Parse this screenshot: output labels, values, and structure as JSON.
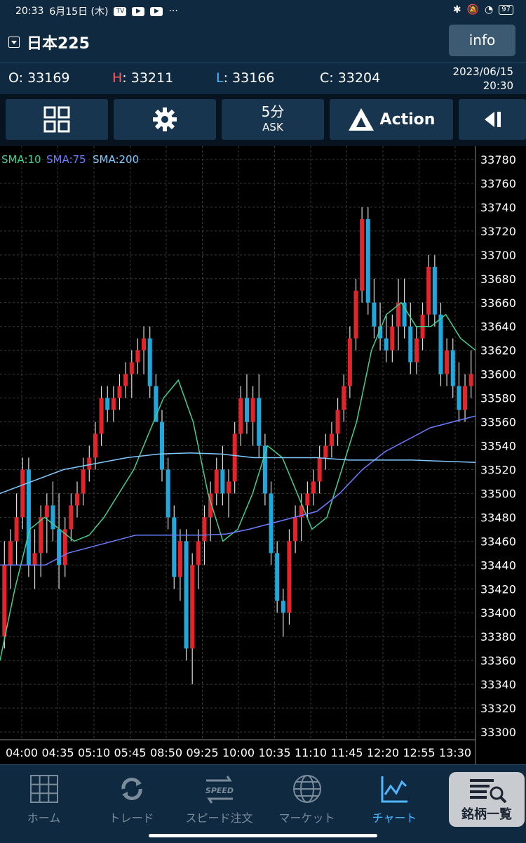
{
  "status_bar": {
    "time": "20:33",
    "date": "6月15日 (木)",
    "app_icons": [
      "tv-icon",
      "youtube-icon",
      "youtube-icon"
    ],
    "overflow": "···",
    "battery": "97"
  },
  "header": {
    "symbol": "日本225",
    "info_label": "info"
  },
  "ohlc": {
    "o_label": "O:",
    "o_value": "33169",
    "h_label": "H",
    "h_value": ": 33211",
    "l_label": "L",
    "l_value": ": 33166",
    "c_label": "C:",
    "c_value": "33204",
    "date": "2023/06/15",
    "time": "20:30"
  },
  "toolbar": {
    "timeframe": "5分",
    "price_type": "ASK",
    "action_label": "Action"
  },
  "legend": {
    "sma10": "SMA:10",
    "sma75": "SMA:75",
    "sma200": "SMA:200"
  },
  "bottom_nav": {
    "home": "ホーム",
    "trade": "トレード",
    "speed": "スピード注文",
    "speed_icon_text": "SPEED",
    "market": "マーケット",
    "chart": "チャート",
    "list": "銘柄一覧"
  },
  "colors": {
    "up": "#e3242b",
    "down": "#1fa8dd",
    "sma10": "#3fd08f",
    "sma75": "#6b7cff",
    "sma200": "#7fc9ff",
    "accent": "#4fb6ff"
  },
  "chart_data": {
    "type": "candlestick",
    "y_ticks": [
      33780,
      33760,
      33740,
      33720,
      33700,
      33680,
      33660,
      33640,
      33620,
      33600,
      33580,
      33560,
      33540,
      33520,
      33500,
      33480,
      33460,
      33440,
      33420,
      33400,
      33380,
      33360,
      33340,
      33320,
      33300
    ],
    "ylim": [
      33290,
      33790
    ],
    "x_ticks": [
      "04:00",
      "04:35",
      "05:10",
      "05:45",
      "08:50",
      "09:25",
      "10:00",
      "10:35",
      "11:10",
      "11:45",
      "12:20",
      "12:55",
      "13:30"
    ],
    "candles": [
      [
        33380,
        33460,
        33370,
        33440
      ],
      [
        33440,
        33470,
        33420,
        33460
      ],
      [
        33460,
        33500,
        33440,
        33480
      ],
      [
        33480,
        33530,
        33470,
        33520
      ],
      [
        33520,
        33530,
        33430,
        33440
      ],
      [
        33440,
        33470,
        33420,
        33450
      ],
      [
        33450,
        33490,
        33430,
        33480
      ],
      [
        33480,
        33500,
        33450,
        33490
      ],
      [
        33490,
        33510,
        33460,
        33470
      ],
      [
        33470,
        33500,
        33420,
        33440
      ],
      [
        33440,
        33480,
        33430,
        33470
      ],
      [
        33470,
        33500,
        33460,
        33490
      ],
      [
        33490,
        33510,
        33480,
        33500
      ],
      [
        33500,
        33530,
        33490,
        33520
      ],
      [
        33520,
        33540,
        33510,
        33530
      ],
      [
        33530,
        33560,
        33520,
        33550
      ],
      [
        33550,
        33590,
        33540,
        33580
      ],
      [
        33580,
        33590,
        33560,
        33570
      ],
      [
        33570,
        33590,
        33560,
        33580
      ],
      [
        33580,
        33600,
        33570,
        33590
      ],
      [
        33590,
        33610,
        33580,
        33600
      ],
      [
        33600,
        33620,
        33580,
        33610
      ],
      [
        33610,
        33630,
        33600,
        33620
      ],
      [
        33620,
        33640,
        33600,
        33630
      ],
      [
        33630,
        33640,
        33580,
        33590
      ],
      [
        33590,
        33600,
        33560,
        33560
      ],
      [
        33560,
        33570,
        33510,
        33520
      ],
      [
        33520,
        33530,
        33470,
        33480
      ],
      [
        33480,
        33490,
        33420,
        33430
      ],
      [
        33430,
        33470,
        33410,
        33460
      ],
      [
        33460,
        33470,
        33360,
        33370
      ],
      [
        33370,
        33450,
        33340,
        33440
      ],
      [
        33440,
        33470,
        33420,
        33460
      ],
      [
        33460,
        33490,
        33440,
        33480
      ],
      [
        33480,
        33510,
        33460,
        33500
      ],
      [
        33500,
        33530,
        33490,
        33520
      ],
      [
        33520,
        33540,
        33490,
        33500
      ],
      [
        33500,
        33520,
        33480,
        33510
      ],
      [
        33510,
        33560,
        33500,
        33550
      ],
      [
        33550,
        33590,
        33540,
        33580
      ],
      [
        33580,
        33600,
        33550,
        33560
      ],
      [
        33560,
        33590,
        33540,
        33580
      ],
      [
        33580,
        33600,
        33530,
        33540
      ],
      [
        33540,
        33550,
        33490,
        33500
      ],
      [
        33500,
        33510,
        33440,
        33450
      ],
      [
        33450,
        33460,
        33400,
        33410
      ],
      [
        33410,
        33420,
        33380,
        33400
      ],
      [
        33400,
        33470,
        33390,
        33460
      ],
      [
        33460,
        33490,
        33450,
        33480
      ],
      [
        33480,
        33500,
        33460,
        33490
      ],
      [
        33490,
        33510,
        33480,
        33500
      ],
      [
        33500,
        33520,
        33490,
        33510
      ],
      [
        33510,
        33540,
        33500,
        33530
      ],
      [
        33530,
        33550,
        33520,
        33540
      ],
      [
        33540,
        33560,
        33530,
        33550
      ],
      [
        33550,
        33580,
        33540,
        33570
      ],
      [
        33570,
        33600,
        33560,
        33590
      ],
      [
        33590,
        33640,
        33580,
        33630
      ],
      [
        33630,
        33680,
        33620,
        33670
      ],
      [
        33670,
        33740,
        33660,
        33730
      ],
      [
        33730,
        33740,
        33650,
        33660
      ],
      [
        33660,
        33680,
        33630,
        33640
      ],
      [
        33640,
        33660,
        33620,
        33630
      ],
      [
        33630,
        33650,
        33610,
        33620
      ],
      [
        33620,
        33650,
        33610,
        33640
      ],
      [
        33640,
        33680,
        33620,
        33660
      ],
      [
        33660,
        33680,
        33630,
        33640
      ],
      [
        33640,
        33660,
        33600,
        33610
      ],
      [
        33610,
        33640,
        33600,
        33630
      ],
      [
        33630,
        33660,
        33620,
        33650
      ],
      [
        33650,
        33700,
        33640,
        33690
      ],
      [
        33690,
        33700,
        33640,
        33650
      ],
      [
        33650,
        33660,
        33590,
        33600
      ],
      [
        33600,
        33630,
        33590,
        33620
      ],
      [
        33620,
        33630,
        33580,
        33590
      ],
      [
        33590,
        33610,
        33560,
        33570
      ],
      [
        33570,
        33600,
        33560,
        33590
      ],
      [
        33590,
        33620,
        33580,
        33600
      ]
    ],
    "series": [
      {
        "name": "SMA:10",
        "values": [
          33360,
          33420,
          33470,
          33480,
          33470,
          33460,
          33465,
          33480,
          33500,
          33520,
          33550,
          33580,
          33595,
          33560,
          33500,
          33460,
          33470,
          33500,
          33540,
          33530,
          33500,
          33470,
          33480,
          33520,
          33560,
          33620,
          33650,
          33660,
          33640,
          33640,
          33650,
          33630,
          33620
        ]
      },
      {
        "name": "SMA:75",
        "values": [
          33440,
          33440,
          33440,
          33450,
          33455,
          33460,
          33465,
          33465,
          33465,
          33465,
          33466,
          33470,
          33475,
          33480,
          33485,
          33500,
          33520,
          33535,
          33545,
          33555,
          33560,
          33565
        ]
      },
      {
        "name": "SMA:200",
        "values": [
          33500,
          33510,
          33520,
          33525,
          33530,
          33533,
          33534,
          33533,
          33530,
          33530,
          33530,
          33528,
          33528,
          33528,
          33527,
          33526
        ]
      }
    ]
  }
}
